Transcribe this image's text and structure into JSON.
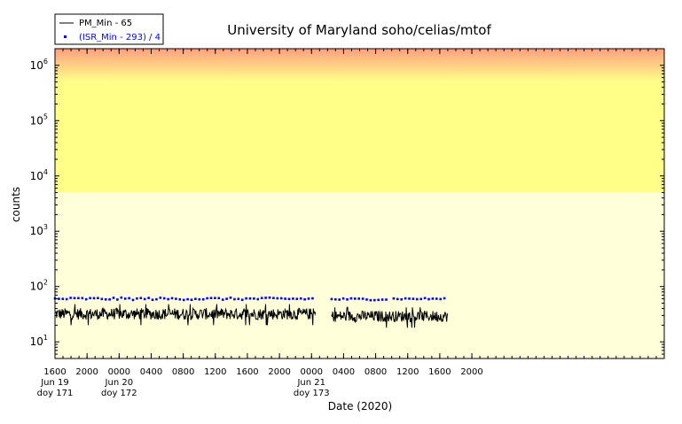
{
  "chart_data": {
    "type": "line",
    "title": "University of Maryland  soho/celias/mtof",
    "xlabel": "Date (2020)",
    "ylabel": "counts",
    "y_scale": "log",
    "ylim": [
      5,
      2000000
    ],
    "xlim": [
      "2020-06-19 16:00",
      "2020-06-22 20:00"
    ],
    "grid": false,
    "legend_placement": "top-left",
    "y_ticks": [
      {
        "value": 10,
        "base": "10",
        "exp": "1"
      },
      {
        "value": 100,
        "base": "10",
        "exp": "2"
      },
      {
        "value": 1000,
        "base": "10",
        "exp": "3"
      },
      {
        "value": 10000,
        "base": "10",
        "exp": "4"
      },
      {
        "value": 100000,
        "base": "10",
        "exp": "5"
      },
      {
        "value": 1000000,
        "base": "10",
        "exp": "6"
      }
    ],
    "x_ticks": [
      {
        "x": "2020-06-19 16:00",
        "label": "1600",
        "sub1": "Jun 19",
        "sub2": "doy 171"
      },
      {
        "x": "2020-06-19 20:00",
        "label": "2000",
        "sub1": "",
        "sub2": ""
      },
      {
        "x": "2020-06-20 00:00",
        "label": "0000",
        "sub1": "Jun 20",
        "sub2": "doy 172"
      },
      {
        "x": "2020-06-20 04:00",
        "label": "0400",
        "sub1": "",
        "sub2": ""
      },
      {
        "x": "2020-06-20 08:00",
        "label": "0800",
        "sub1": "",
        "sub2": ""
      },
      {
        "x": "2020-06-20 12:00",
        "label": "1200",
        "sub1": "",
        "sub2": ""
      },
      {
        "x": "2020-06-20 16:00",
        "label": "1600",
        "sub1": "",
        "sub2": ""
      },
      {
        "x": "2020-06-20 20:00",
        "label": "2000",
        "sub1": "",
        "sub2": ""
      },
      {
        "x": "2020-06-21 00:00",
        "label": "0000",
        "sub1": "Jun 21",
        "sub2": "doy 173"
      },
      {
        "x": "2020-06-21 04:00",
        "label": "0400",
        "sub1": "",
        "sub2": ""
      },
      {
        "x": "2020-06-21 08:00",
        "label": "0800",
        "sub1": "",
        "sub2": ""
      },
      {
        "x": "2020-06-21 12:00",
        "label": "1200",
        "sub1": "",
        "sub2": ""
      },
      {
        "x": "2020-06-21 16:00",
        "label": "1600",
        "sub1": "",
        "sub2": ""
      },
      {
        "x": "2020-06-21 20:00",
        "label": "2000",
        "sub1": "",
        "sub2": ""
      }
    ],
    "background_bands": [
      {
        "from": 5,
        "to": 5000,
        "color": "#ffffd9"
      },
      {
        "from": 5000,
        "to": 500000,
        "color": "#ffff88"
      },
      {
        "from": 500000,
        "to": 2000000,
        "color_bottom": "#ffff88",
        "color_top": "#ff9f80"
      }
    ],
    "series": [
      {
        "name": "PM_Min - 65",
        "style": "line",
        "color": "#000000",
        "segments": [
          {
            "start": "2020-06-19 16:00",
            "end": "2020-06-21 00:30",
            "mean": 32,
            "low": 20,
            "high": 48
          },
          {
            "start": "2020-06-21 02:30",
            "end": "2020-06-21 17:00",
            "mean": 29,
            "low": 18,
            "high": 42
          }
        ]
      },
      {
        "name": "(ISR_Min - 293) / 4",
        "style": "points",
        "color": "#0000ff",
        "segments": [
          {
            "start": "2020-06-19 16:00",
            "end": "2020-06-21 00:30",
            "mean": 60,
            "low": 57,
            "high": 63
          },
          {
            "start": "2020-06-21 02:30",
            "end": "2020-06-21 09:30",
            "mean": 59,
            "low": 57,
            "high": 62
          },
          {
            "start": "2020-06-21 10:15",
            "end": "2020-06-21 16:40",
            "mean": 60,
            "low": 58,
            "high": 62
          }
        ]
      }
    ]
  }
}
